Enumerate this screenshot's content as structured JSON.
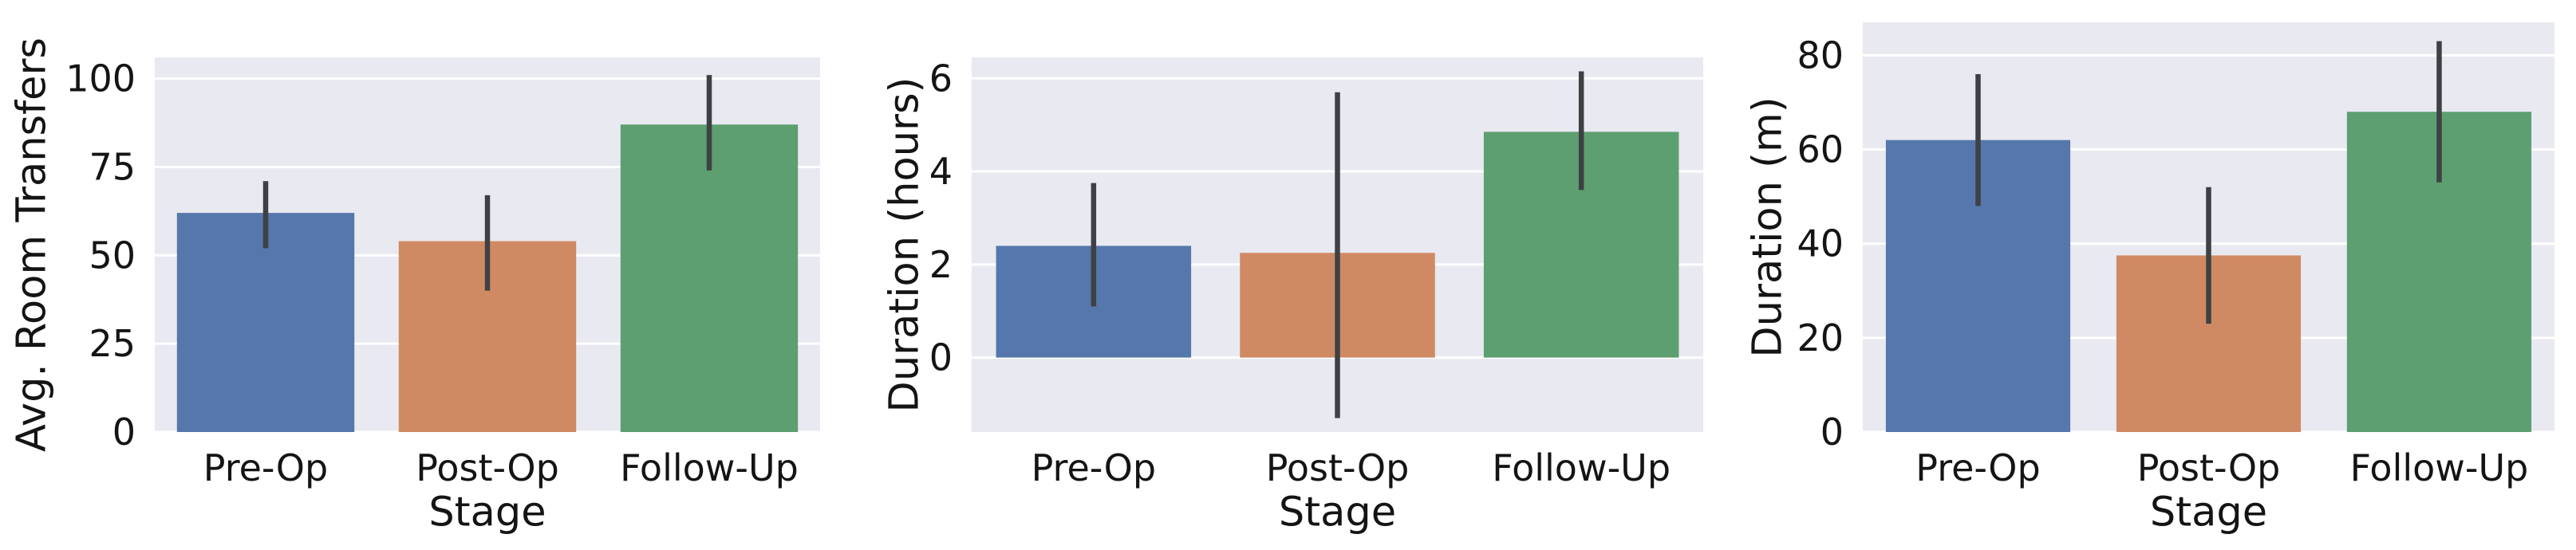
{
  "figure": {
    "background": "#ffffff",
    "text_color": "#141414",
    "panel_bg": "#e9e9f1",
    "grid_color": "#ffffff",
    "error_bar_color": "#3e4143",
    "bar_palette": [
      "#5577ab",
      "#d08a63",
      "#5d9f70"
    ]
  },
  "chart_data": [
    {
      "type": "bar",
      "title": "",
      "xlabel": "Stage",
      "ylabel": "Avg. Room Transfers",
      "categories": [
        "Pre-Op",
        "Post-Op",
        "Follow-Up"
      ],
      "values": [
        62,
        54,
        87
      ],
      "error_low": [
        52,
        40,
        74
      ],
      "error_high": [
        71,
        67,
        101
      ],
      "yticks": [
        0,
        25,
        50,
        75,
        100
      ],
      "ylim": [
        0,
        106
      ],
      "bar_colors": [
        "#5577ab",
        "#d08a63",
        "#5d9f70"
      ],
      "grid": true,
      "legend": false
    },
    {
      "type": "bar",
      "title": "",
      "xlabel": "Stage",
      "ylabel": "Duration (hours)",
      "categories": [
        "Pre-Op",
        "Post-Op",
        "Follow-Up"
      ],
      "values": [
        2.4,
        2.25,
        4.85
      ],
      "error_low": [
        1.1,
        -1.3,
        3.6
      ],
      "error_high": [
        3.75,
        5.7,
        6.15
      ],
      "yticks": [
        0,
        2,
        4,
        6
      ],
      "ylim": [
        -1.6,
        6.45
      ],
      "bar_colors": [
        "#5577ab",
        "#d08a63",
        "#5d9f70"
      ],
      "grid": true,
      "legend": false
    },
    {
      "type": "bar",
      "title": "",
      "xlabel": "Stage",
      "ylabel": "Duration (m)",
      "categories": [
        "Pre-Op",
        "Post-Op",
        "Follow-Up"
      ],
      "values": [
        62,
        37.5,
        68
      ],
      "error_low": [
        48,
        23,
        53
      ],
      "error_high": [
        76,
        52,
        83
      ],
      "yticks": [
        0,
        20,
        40,
        60,
        80
      ],
      "ylim": [
        0,
        87
      ],
      "bar_colors": [
        "#5577ab",
        "#d08a63",
        "#5d9f70"
      ],
      "grid": true,
      "legend": false
    }
  ]
}
